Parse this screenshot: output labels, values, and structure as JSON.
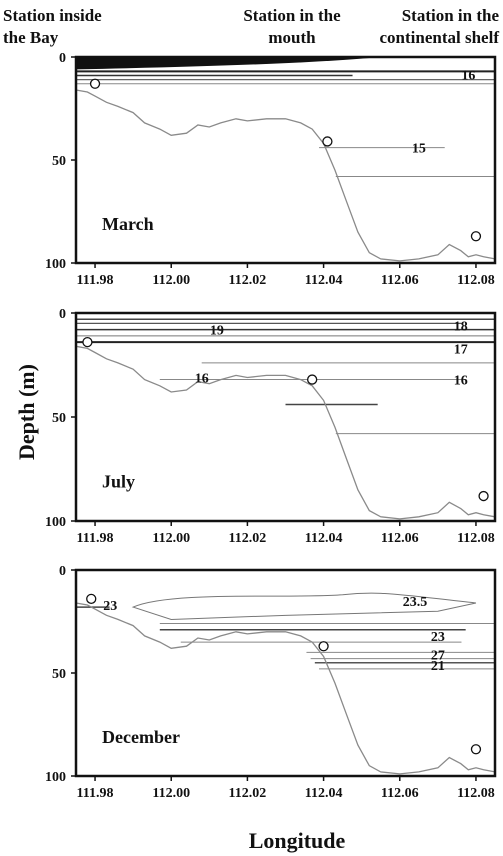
{
  "header": {
    "station_bay": [
      "Station inside",
      "the Bay"
    ],
    "station_mouth": [
      "Station in the",
      "mouth"
    ],
    "station_shelf": [
      "Station in the",
      "continental shelf"
    ]
  },
  "chart_data": {
    "type": "line",
    "xlabel": "Longitude",
    "ylabel": "Depth (m)",
    "xlim": [
      111.975,
      112.085
    ],
    "ylim": [
      100,
      0
    ],
    "xticks": [
      "111.98",
      "112.00",
      "112.02",
      "112.04",
      "112.06",
      "112.08"
    ],
    "xtick_values": [
      111.98,
      112.0,
      112.02,
      112.04,
      112.06,
      112.08
    ],
    "yticks": [
      "0",
      "50",
      "100"
    ],
    "ytick_values": [
      0,
      50,
      100
    ],
    "bathymetry": {
      "lon": [
        111.975,
        111.978,
        111.98,
        111.983,
        111.986,
        111.99,
        111.993,
        111.997,
        112.0,
        112.004,
        112.007,
        112.01,
        112.013,
        112.017,
        112.02,
        112.025,
        112.03,
        112.034,
        112.037,
        112.04,
        112.043,
        112.046,
        112.049,
        112.052,
        112.055,
        112.06,
        112.065,
        112.07,
        112.073,
        112.076,
        112.078,
        112.08,
        112.082,
        112.085
      ],
      "depth": [
        16,
        17,
        19,
        22,
        24,
        27,
        32,
        35,
        38,
        37,
        33,
        34,
        32,
        30,
        31,
        30,
        30,
        32,
        35,
        42,
        55,
        70,
        85,
        95,
        98,
        99,
        98,
        96,
        91,
        94,
        97,
        96,
        97,
        98
      ]
    },
    "panels": [
      {
        "month": "March",
        "stations": [
          {
            "lon": 111.98,
            "depth": 13
          },
          {
            "lon": 112.041,
            "depth": 41
          },
          {
            "lon": 112.08,
            "depth": 87
          }
        ],
        "isotherms": [
          {
            "label": "16",
            "label_lon": 112.078,
            "label_depth": 8.5
          },
          {
            "label": "15",
            "label_lon": 112.065,
            "label_depth": 44
          }
        ]
      },
      {
        "month": "July",
        "stations": [
          {
            "lon": 111.978,
            "depth": 14
          },
          {
            "lon": 112.037,
            "depth": 32
          },
          {
            "lon": 112.082,
            "depth": 88
          }
        ],
        "isotherms": [
          {
            "label": "19",
            "label_lon": 112.012,
            "label_depth": 8
          },
          {
            "label": "18",
            "label_lon": 112.076,
            "label_depth": 6
          },
          {
            "label": "17",
            "label_lon": 112.076,
            "label_depth": 17
          },
          {
            "label": "16",
            "label_lon": 112.008,
            "label_depth": 31
          },
          {
            "label": "16",
            "label_lon": 112.076,
            "label_depth": 32
          }
        ]
      },
      {
        "month": "December",
        "stations": [
          {
            "lon": 111.979,
            "depth": 14
          },
          {
            "lon": 112.04,
            "depth": 37
          },
          {
            "lon": 112.08,
            "depth": 87
          }
        ],
        "isotherms": [
          {
            "label": "23",
            "label_lon": 111.984,
            "label_depth": 17
          },
          {
            "label": "23.5",
            "label_lon": 112.064,
            "label_depth": 15
          },
          {
            "label": "23",
            "label_lon": 112.07,
            "label_depth": 32
          },
          {
            "label": "27",
            "label_lon": 112.07,
            "label_depth": 41
          },
          {
            "label": "21",
            "label_lon": 112.07,
            "label_depth": 46
          }
        ]
      }
    ]
  }
}
